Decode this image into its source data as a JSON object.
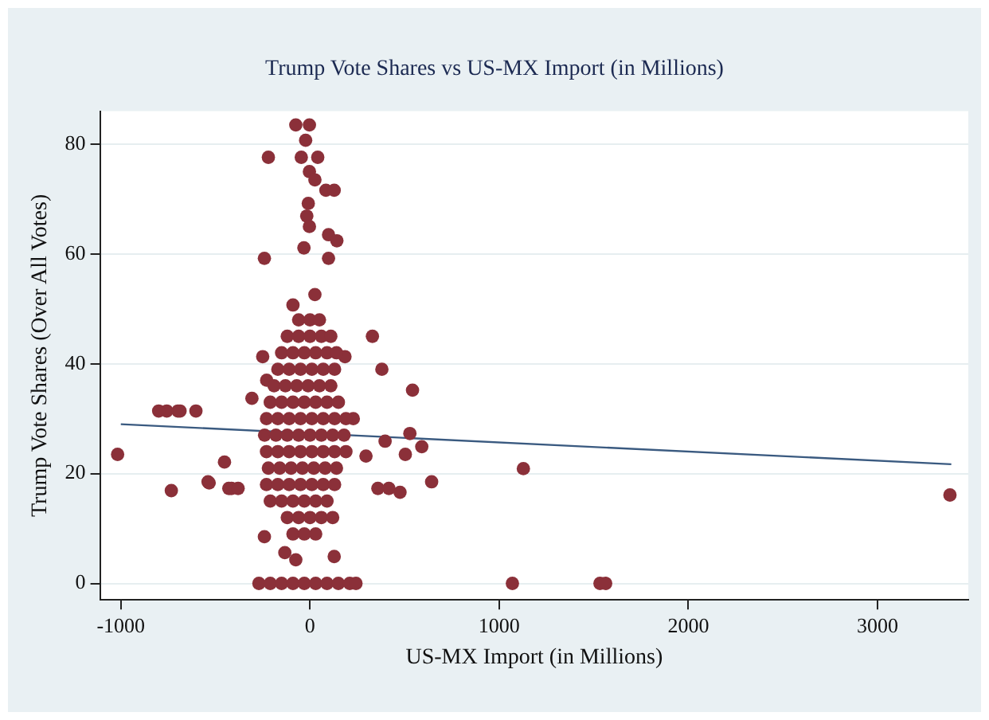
{
  "chart_data": {
    "type": "scatter",
    "title": "Trump Vote Shares vs US-MX Import (in Millions)",
    "xlabel": "US-MX Import (in Millions)",
    "ylabel": "Trump Vote Shares (Over All Votes)",
    "xlim": [
      -1110,
      3480
    ],
    "xticks": [
      -1000,
      0,
      1000,
      2000,
      3000
    ],
    "ylim": [
      -3,
      86
    ],
    "yticks": [
      0,
      20,
      40,
      60,
      80
    ],
    "grid": "y",
    "legend": false,
    "series": [
      {
        "marker": "circle",
        "color": "#8b3039",
        "x": [
          -75,
          -3,
          -23,
          -220,
          -46,
          41,
          -3,
          26,
          84,
          128,
          -9,
          -17,
          -3,
          98,
          142,
          -32,
          -241,
          98,
          26,
          -90,
          330,
          -250,
          185,
          380,
          -229,
          542,
          -307,
          -757,
          -698,
          -603,
          -1017,
          -800,
          -687,
          -733,
          -533,
          -452,
          -429,
          -539,
          -415,
          -380,
          229,
          528,
          397,
          591,
          504,
          296,
          643,
          359,
          417,
          476,
          1128,
          -241,
          -133,
          -75,
          128,
          -270,
          -210,
          -150,
          -90,
          -30,
          30,
          90,
          150,
          210,
          243,
          1070,
          1533,
          1563,
          3383,
          -60,
          0,
          50,
          -120,
          -60,
          0,
          60,
          110,
          -150,
          -90,
          -30,
          30,
          90,
          140,
          -170,
          -110,
          -50,
          10,
          70,
          130,
          -190,
          -130,
          -70,
          -10,
          50,
          110,
          -210,
          -150,
          -90,
          -30,
          30,
          90,
          150,
          -230,
          -170,
          -110,
          -50,
          10,
          70,
          130,
          190,
          -240,
          -180,
          -120,
          -60,
          0,
          60,
          120,
          180,
          -230,
          -170,
          -110,
          -50,
          10,
          70,
          130,
          190,
          -220,
          -160,
          -100,
          -40,
          20,
          80,
          140,
          -230,
          -170,
          -110,
          -50,
          10,
          70,
          130,
          -210,
          -150,
          -90,
          -30,
          30,
          90,
          -120,
          -60,
          0,
          60,
          120,
          -90,
          -30,
          30
        ],
        "values": [
          83.5,
          83.5,
          80.7,
          77.6,
          77.6,
          77.6,
          75,
          73.5,
          71.6,
          71.6,
          69.2,
          66.9,
          65,
          63.5,
          62.4,
          61.1,
          59.2,
          59.2,
          52.6,
          50.7,
          45,
          41.3,
          41.3,
          39,
          37,
          35.2,
          33.7,
          31.4,
          31.4,
          31.4,
          23.5,
          31.4,
          31.4,
          16.9,
          18.3,
          22.1,
          17.3,
          18.5,
          17.3,
          17.3,
          30,
          27.3,
          25.9,
          24.9,
          23.5,
          23.2,
          18.5,
          17.3,
          17.3,
          16.6,
          20.9,
          8.5,
          5.6,
          4.3,
          4.9,
          0,
          0,
          0,
          0,
          0,
          0,
          0,
          0,
          0,
          0,
          0,
          0,
          0,
          16.1,
          48,
          48,
          48,
          45,
          45,
          45,
          45,
          45,
          42,
          42,
          42,
          42,
          42,
          42,
          39,
          39,
          39,
          39,
          39,
          39,
          36,
          36,
          36,
          36,
          36,
          36,
          33,
          33,
          33,
          33,
          33,
          33,
          33,
          30,
          30,
          30,
          30,
          30,
          30,
          30,
          30,
          27,
          27,
          27,
          27,
          27,
          27,
          27,
          27,
          24,
          24,
          24,
          24,
          24,
          24,
          24,
          24,
          21,
          21,
          21,
          21,
          21,
          21,
          21,
          18,
          18,
          18,
          18,
          18,
          18,
          18,
          15,
          15,
          15,
          15,
          15,
          15,
          12,
          12,
          12,
          12,
          12,
          9,
          9,
          9
        ]
      },
      {
        "type": "line",
        "marker": "none",
        "color": "#3a5a80",
        "x": [
          -1000,
          3390
        ],
        "values": [
          29,
          21.7
        ]
      }
    ]
  }
}
